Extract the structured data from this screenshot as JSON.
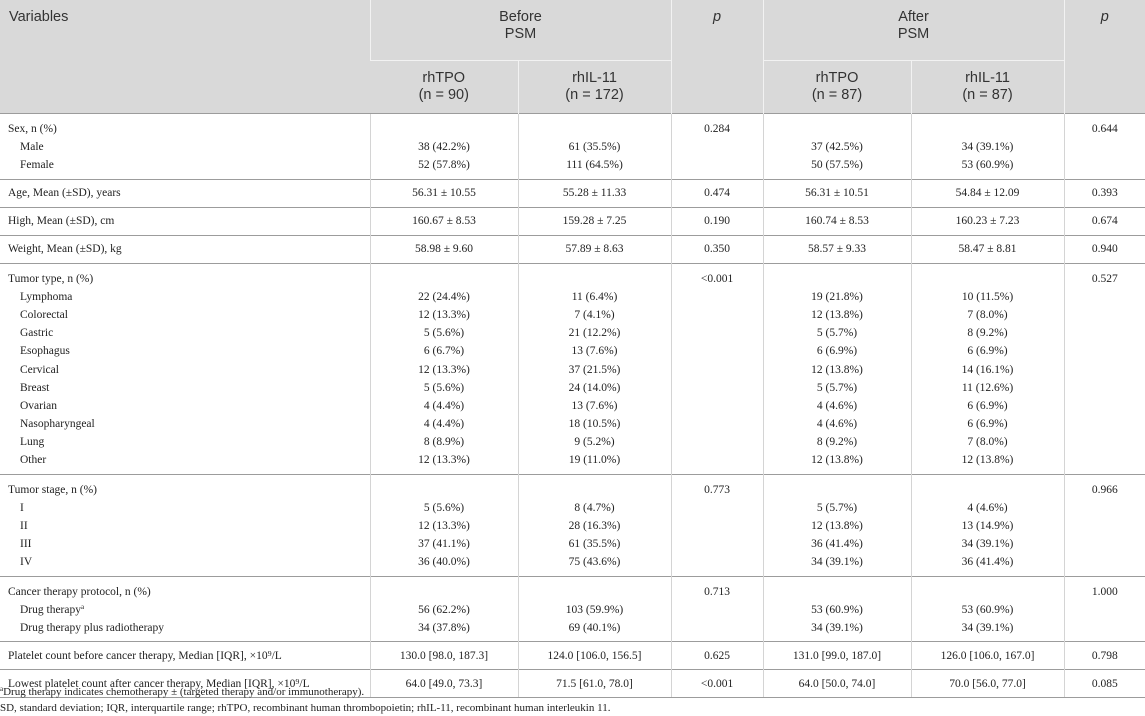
{
  "header": {
    "variables": "Variables",
    "before": [
      "Before",
      "PSM"
    ],
    "after": [
      "After",
      "PSM"
    ],
    "p": "p",
    "groups": [
      [
        "rhTPO",
        "(n = 90)"
      ],
      [
        "rhIL-11",
        "(n = 172)"
      ],
      [
        "rhTPO",
        "(n = 87)"
      ],
      [
        "rhIL-11",
        "(n = 87)"
      ]
    ]
  },
  "rows": [
    {
      "title": "Sex, n (%)",
      "p_before": "0.284",
      "p_after": "0.644",
      "items": [
        {
          "label": "Male",
          "vals": [
            "38 (42.2%)",
            "61 (35.5%)",
            "37 (42.5%)",
            "34 (39.1%)"
          ]
        },
        {
          "label": "Female",
          "vals": [
            "52 (57.8%)",
            "111 (64.5%)",
            "50 (57.5%)",
            "53 (60.9%)"
          ]
        }
      ]
    },
    {
      "title": "Age, Mean (±SD), years",
      "vals": [
        "56.31 ± 10.55",
        "55.28 ± 11.33",
        "56.31 ± 10.51",
        "54.84 ± 12.09"
      ],
      "p_before": "0.474",
      "p_after": "0.393"
    },
    {
      "title": "High, Mean (±SD), cm",
      "vals": [
        "160.67 ± 8.53",
        "159.28 ± 7.25",
        "160.74 ± 8.53",
        "160.23 ± 7.23"
      ],
      "p_before": "0.190",
      "p_after": "0.674"
    },
    {
      "title": "Weight, Mean (±SD), kg",
      "vals": [
        "58.98 ± 9.60",
        "57.89 ± 8.63",
        "58.57 ± 9.33",
        "58.47 ± 8.81"
      ],
      "p_before": "0.350",
      "p_after": "0.940"
    },
    {
      "title": "Tumor type, n (%)",
      "p_before": "<0.001",
      "p_after": "0.527",
      "items": [
        {
          "label": "Lymphoma",
          "vals": [
            "22 (24.4%)",
            "11 (6.4%)",
            "19 (21.8%)",
            "10 (11.5%)"
          ]
        },
        {
          "label": "Colorectal",
          "vals": [
            "12 (13.3%)",
            "7 (4.1%)",
            "12 (13.8%)",
            "7 (8.0%)"
          ]
        },
        {
          "label": "Gastric",
          "vals": [
            "5 (5.6%)",
            "21 (12.2%)",
            "5 (5.7%)",
            "8 (9.2%)"
          ]
        },
        {
          "label": "Esophagus",
          "vals": [
            "6 (6.7%)",
            "13 (7.6%)",
            "6 (6.9%)",
            "6 (6.9%)"
          ]
        },
        {
          "label": "Cervical",
          "vals": [
            "12 (13.3%)",
            "37 (21.5%)",
            "12 (13.8%)",
            "14 (16.1%)"
          ]
        },
        {
          "label": "Breast",
          "vals": [
            "5 (5.6%)",
            "24 (14.0%)",
            "5 (5.7%)",
            "11 (12.6%)"
          ]
        },
        {
          "label": "Ovarian",
          "vals": [
            "4 (4.4%)",
            "13 (7.6%)",
            "4 (4.6%)",
            "6 (6.9%)"
          ]
        },
        {
          "label": "Nasopharyngeal",
          "vals": [
            "4 (4.4%)",
            "18 (10.5%)",
            "4 (4.6%)",
            "6 (6.9%)"
          ]
        },
        {
          "label": "Lung",
          "vals": [
            "8 (8.9%)",
            "9 (5.2%)",
            "8 (9.2%)",
            "7 (8.0%)"
          ]
        },
        {
          "label": "Other",
          "vals": [
            "12 (13.3%)",
            "19 (11.0%)",
            "12 (13.8%)",
            "12 (13.8%)"
          ]
        }
      ]
    },
    {
      "title": "Tumor stage, n (%)",
      "p_before": "0.773",
      "p_after": "0.966",
      "items": [
        {
          "label": "I",
          "vals": [
            "5 (5.6%)",
            "8 (4.7%)",
            "5 (5.7%)",
            "4 (4.6%)"
          ]
        },
        {
          "label": "II",
          "vals": [
            "12 (13.3%)",
            "28 (16.3%)",
            "12 (13.8%)",
            "13 (14.9%)"
          ]
        },
        {
          "label": "III",
          "vals": [
            "37 (41.1%)",
            "61 (35.5%)",
            "36 (41.4%)",
            "34 (39.1%)"
          ]
        },
        {
          "label": "IV",
          "vals": [
            "36 (40.0%)",
            "75 (43.6%)",
            "34 (39.1%)",
            "36 (41.4%)"
          ]
        }
      ]
    },
    {
      "title": "Cancer therapy protocol, n (%)",
      "p_before": "0.713",
      "p_after": "1.000",
      "items": [
        {
          "label": "Drug therapy",
          "sup": "a",
          "vals": [
            "56 (62.2%)",
            "103 (59.9%)",
            "53 (60.9%)",
            "53 (60.9%)"
          ]
        },
        {
          "label": "Drug therapy plus radiotherapy",
          "vals": [
            "34 (37.8%)",
            "69 (40.1%)",
            "34 (39.1%)",
            "34 (39.1%)"
          ]
        }
      ]
    },
    {
      "title": "Platelet count before cancer therapy, Median [IQR], ×10⁹/L",
      "vals": [
        "130.0 [98.0, 187.3]",
        "124.0 [106.0, 156.5]",
        "131.0 [99.0, 187.0]",
        "126.0 [106.0, 167.0]"
      ],
      "p_before": "0.625",
      "p_after": "0.798"
    },
    {
      "title": "Lowest platelet count after cancer therapy, Median [IQR], ×10⁹/L",
      "vals": [
        "64.0 [49.0, 73.3]",
        "71.5 [61.0, 78.0]",
        "64.0 [50.0, 74.0]",
        "70.0 [56.0, 77.0]"
      ],
      "p_before": "<0.001",
      "p_after": "0.085"
    }
  ],
  "footnotes": {
    "note_a_sup": "a",
    "note_a": "Drug therapy indicates chemotherapy ± (targeted therapy and/or immunotherapy).",
    "abbrev": "SD, standard deviation; IQR, interquartile range; rhTPO, recombinant human thrombopoietin; rhIL-11, recombinant human interleukin 11."
  }
}
